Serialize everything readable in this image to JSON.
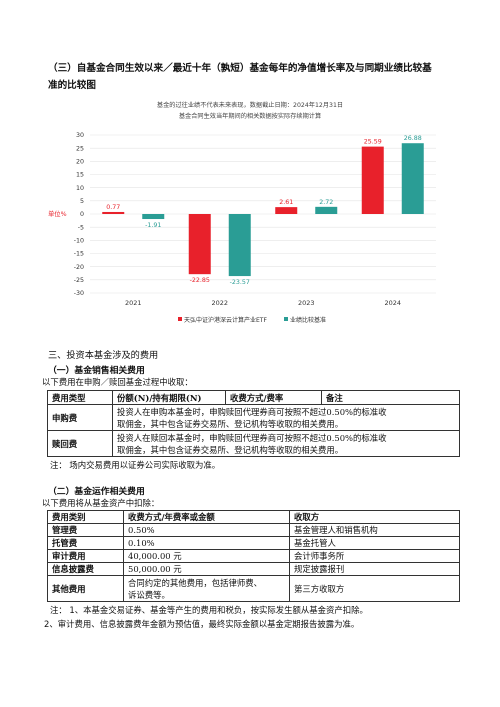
{
  "section3": {
    "title_line1": "（三）自基金合同生效以来／最近十年（孰短）基金每年的净值增长率及与同期业绩比较基",
    "title_line2": "准的比较图"
  },
  "chart_notes": {
    "line1": "基金的过往业绩不代表未来表现，数据截止日期：2024年12月31日",
    "line2": "基金合同生效当年期间的相关数据按实际存续期计算"
  },
  "chart_data": {
    "type": "bar",
    "categories": [
      "2021",
      "2022",
      "2023",
      "2024"
    ],
    "series": [
      {
        "name": "天弘中证沪港深云计算产业ETF",
        "color": "#e8212b",
        "values": [
          0.77,
          -22.85,
          2.61,
          25.59
        ]
      },
      {
        "name": "业绩比较基准",
        "color": "#2a9d95",
        "values": [
          -1.91,
          -23.57,
          2.72,
          26.88
        ]
      }
    ],
    "ylabel": "单位%",
    "ylim": [
      -30,
      30
    ],
    "yticks": [
      30,
      25,
      20,
      15,
      10,
      5,
      0,
      -5,
      -10,
      -15,
      -20,
      -25,
      -30
    ],
    "legend": "bottom",
    "grid": true
  },
  "fees": {
    "title": "三、投资本基金涉及的费用",
    "sales": {
      "title": "（一）基金销售相关费用",
      "intro": "以下费用在申购／赎回基金过程中收取：",
      "headers": [
        "费用类型",
        "份额(N)/持有期限(N)",
        "收费方式/费率",
        "备注"
      ],
      "rows": [
        {
          "type": "申购费",
          "desc_line1": "投资人在申购本基金时，申购赎回代理券商可按照不超过0.50%的标准收",
          "desc_line2": "取佣金，其中包含证券交易所、登记机构等收取的相关费用。"
        },
        {
          "type": "赎回费",
          "desc_line1": "投资人在赎回本基金时，申购赎回代理券商可按照不超过0.50%的标准收",
          "desc_line2": "取佣金，其中包含证券交易所、登记机构等收取的相关费用。"
        }
      ],
      "note": "注：  场内交易费用以证券公司实际收取为准。"
    },
    "ops": {
      "title": "（二）基金运作相关费用",
      "intro": "以下费用将从基金资产中扣除：",
      "headers": [
        "费用类别",
        "收费方式/年费率或金额",
        "收取方"
      ],
      "rows": [
        {
          "type": "管理费",
          "rate": "0.50%",
          "payee": "基金管理人和销售机构"
        },
        {
          "type": "托管费",
          "rate": "0.10%",
          "payee": "基金托管人"
        },
        {
          "type": "审计费用",
          "rate": "40,000.00 元",
          "payee": "会计师事务所"
        },
        {
          "type": "信息披露费",
          "rate": "50,000.00 元",
          "payee": "规定披露报刊"
        },
        {
          "type": "其他费用",
          "rate_line1": "合同约定的其他费用，包括律师费、",
          "rate_line2": "诉讼费等。",
          "payee": "第三方收取方"
        }
      ],
      "note1": "注：  1、本基金交易证券、基金等产生的费用和税负，按实际发生额从基金资产扣除。",
      "note2": "2、审计费用、信息披露费年金额为预估值，最终实际金额以基金定期报告披露为准。"
    }
  }
}
